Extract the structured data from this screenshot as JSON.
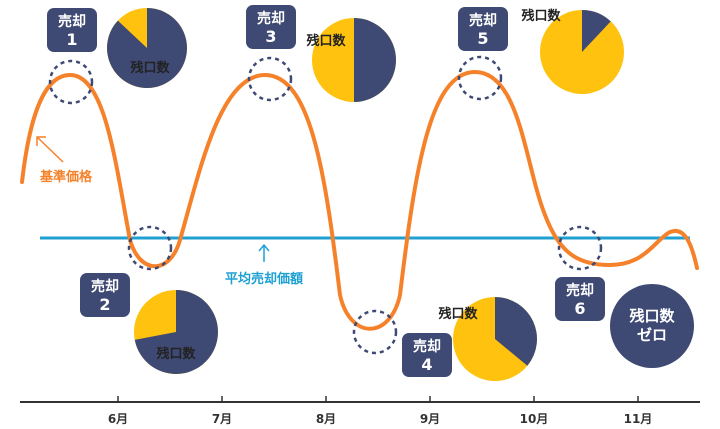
{
  "colors": {
    "price_line": "#F5822A",
    "average_line": "#1FA0D2",
    "navy": "#3F4A74",
    "yellow": "#FFC20E",
    "axis": "#333333",
    "circle_dash": "#3F4A74"
  },
  "labels": {
    "base_price": "基準価格",
    "average_price": "平均売却価額",
    "remaining": "残口数",
    "remaining_zero": [
      "残口数",
      "ゼロ"
    ]
  },
  "sales": [
    {
      "line1": "売却",
      "line2": "1",
      "remaining_fraction": 0.87
    },
    {
      "line1": "売却",
      "line2": "2",
      "remaining_fraction": 0.72
    },
    {
      "line1": "売却",
      "line2": "3",
      "remaining_fraction": 0.5
    },
    {
      "line1": "売却",
      "line2": "4",
      "remaining_fraction": 0.36
    },
    {
      "line1": "売却",
      "line2": "5",
      "remaining_fraction": 0.12
    },
    {
      "line1": "売却",
      "line2": "6",
      "remaining_fraction": 0.0
    }
  ],
  "months": [
    "6月",
    "7月",
    "8月",
    "9月",
    "10月",
    "11月"
  ]
}
